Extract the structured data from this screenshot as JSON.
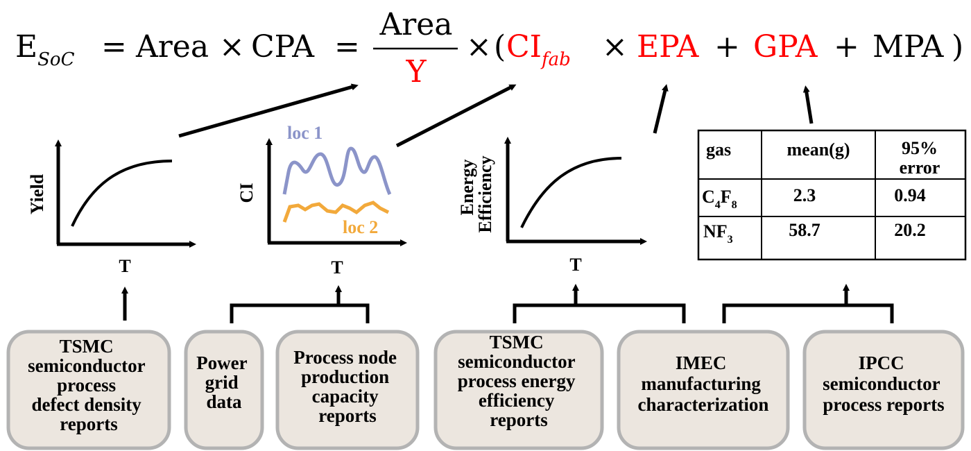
{
  "equation": {
    "lhs_base": "E",
    "lhs_sub": "SoC",
    "eq1": "=",
    "area": "Area",
    "times1": "×",
    "cpa": "CPA",
    "eq2": "=",
    "frac_num": "Area",
    "frac_den": "Y",
    "times2": "×",
    "open_paren": "(",
    "ci_base": "CI",
    "ci_sub": "fab",
    "times3": "×",
    "epa": "EPA",
    "plus1": "+",
    "gpa": "GPA",
    "plus2": "+",
    "mpa": "MPA",
    "close_paren": ")"
  },
  "colors": {
    "highlight": "#ff0000",
    "text": "#000000",
    "loc1": "#8b94c9",
    "loc2": "#f2a93b",
    "box_fill": "#ece6df",
    "box_stroke": "#b3b3b3"
  },
  "plots": {
    "yield": {
      "ylabel": "Yield",
      "xlabel": "T"
    },
    "ci": {
      "ylabel": "CI",
      "xlabel": "T",
      "loc1": "loc 1",
      "loc2": "loc 2"
    },
    "energy": {
      "ylabel_line1": "Energy",
      "ylabel_line2": "Efficiency",
      "xlabel": "T"
    }
  },
  "table": {
    "headers": [
      "gas",
      "mean(g)",
      "95%",
      "error"
    ],
    "rows": [
      {
        "gas": "C",
        "sub1": "4",
        "mid": "F",
        "sub2": "8",
        "mean": "2.3",
        "error": "0.94"
      },
      {
        "gas": "NF",
        "sub1": "3",
        "mid": "",
        "sub2": "",
        "mean": "58.7",
        "error": "20.2"
      }
    ]
  },
  "sources": [
    {
      "lines": [
        "TSMC",
        "semiconductor",
        "process",
        "defect density",
        "reports"
      ]
    },
    {
      "lines": [
        "Power",
        "grid",
        "data"
      ]
    },
    {
      "lines": [
        "Process node",
        "production",
        "capacity",
        "reports"
      ]
    },
    {
      "lines": [
        "TSMC",
        "semiconductor",
        "process energy",
        "efficiency",
        "reports"
      ]
    },
    {
      "lines": [
        "IMEC",
        "manufacturing",
        "characterization"
      ]
    },
    {
      "lines": [
        "IPCC",
        "semiconductor",
        "process reports"
      ]
    }
  ]
}
